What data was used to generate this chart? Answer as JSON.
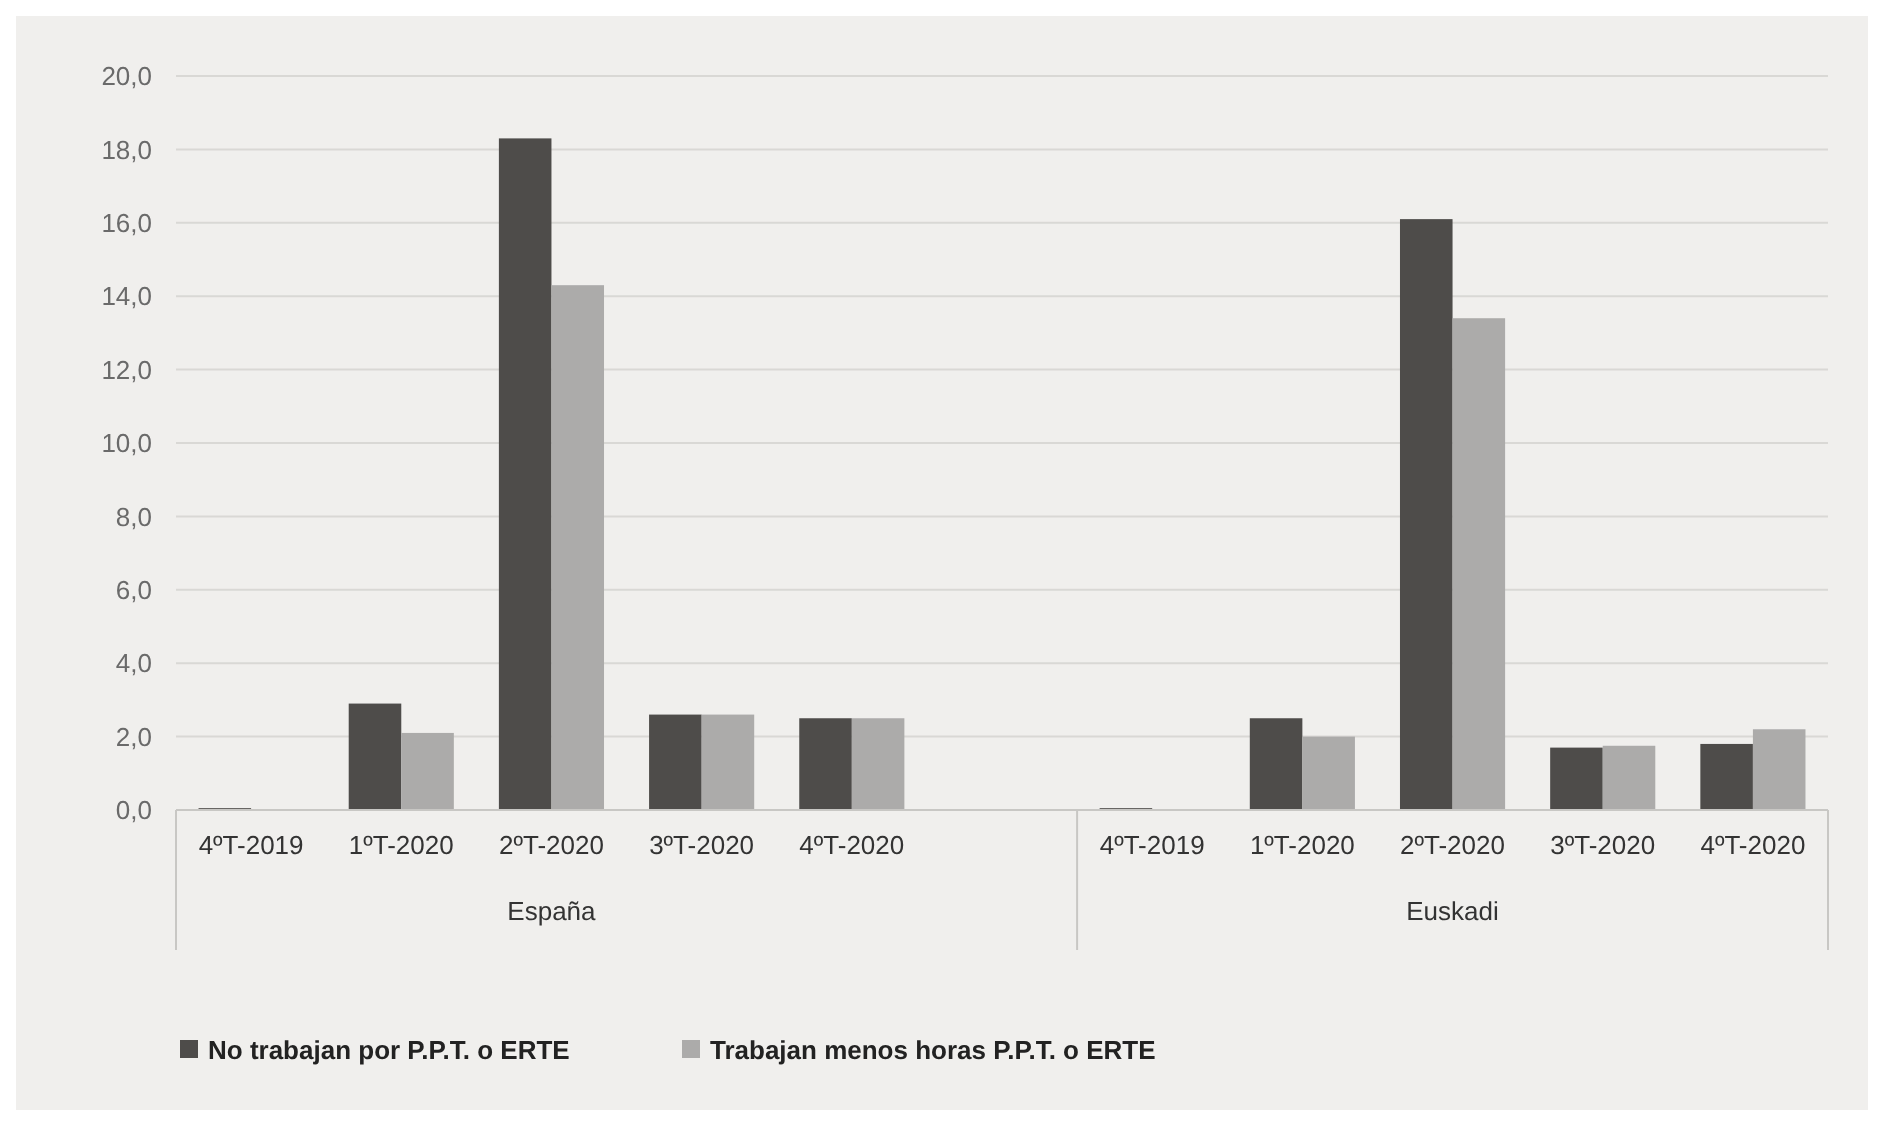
{
  "chart_data": {
    "type": "bar",
    "categories": [
      "4ºT-2019",
      "1ºT-2020",
      "2ºT-2020",
      "3ºT-2020",
      "4ºT-2020",
      null,
      "4ºT-2019",
      "1ºT-2020",
      "2ºT-2020",
      "3ºT-2020",
      "4ºT-2020"
    ],
    "series": [
      {
        "name": "No trabajan por P.P.T. o ERTE",
        "color": "#4e4c4a",
        "values": [
          0.05,
          2.9,
          18.3,
          2.6,
          2.5,
          null,
          0.05,
          2.5,
          16.1,
          1.7,
          1.8
        ]
      },
      {
        "name": "Trabajan menos horas P.P.T. o ERTE",
        "color": "#acabaa",
        "values": [
          null,
          2.1,
          14.3,
          2.6,
          2.5,
          null,
          null,
          2.0,
          13.4,
          1.75,
          2.2
        ]
      }
    ],
    "ylim": [
      0,
      20
    ],
    "yticks": [
      {
        "value": 0,
        "label": "0,0"
      },
      {
        "value": 2,
        "label": "2,0"
      },
      {
        "value": 4,
        "label": "4,0"
      },
      {
        "value": 6,
        "label": "6,0"
      },
      {
        "value": 8,
        "label": "8,0"
      },
      {
        "value": 10,
        "label": "10,0"
      },
      {
        "value": 12,
        "label": "12,0"
      },
      {
        "value": 14,
        "label": "14,0"
      },
      {
        "value": 16,
        "label": "16,0"
      },
      {
        "value": 18,
        "label": "18,0"
      },
      {
        "value": 20,
        "label": "20,0"
      }
    ],
    "annotations": [
      "España",
      "Euskadi"
    ],
    "grid": "y",
    "legend": "bottom left"
  }
}
